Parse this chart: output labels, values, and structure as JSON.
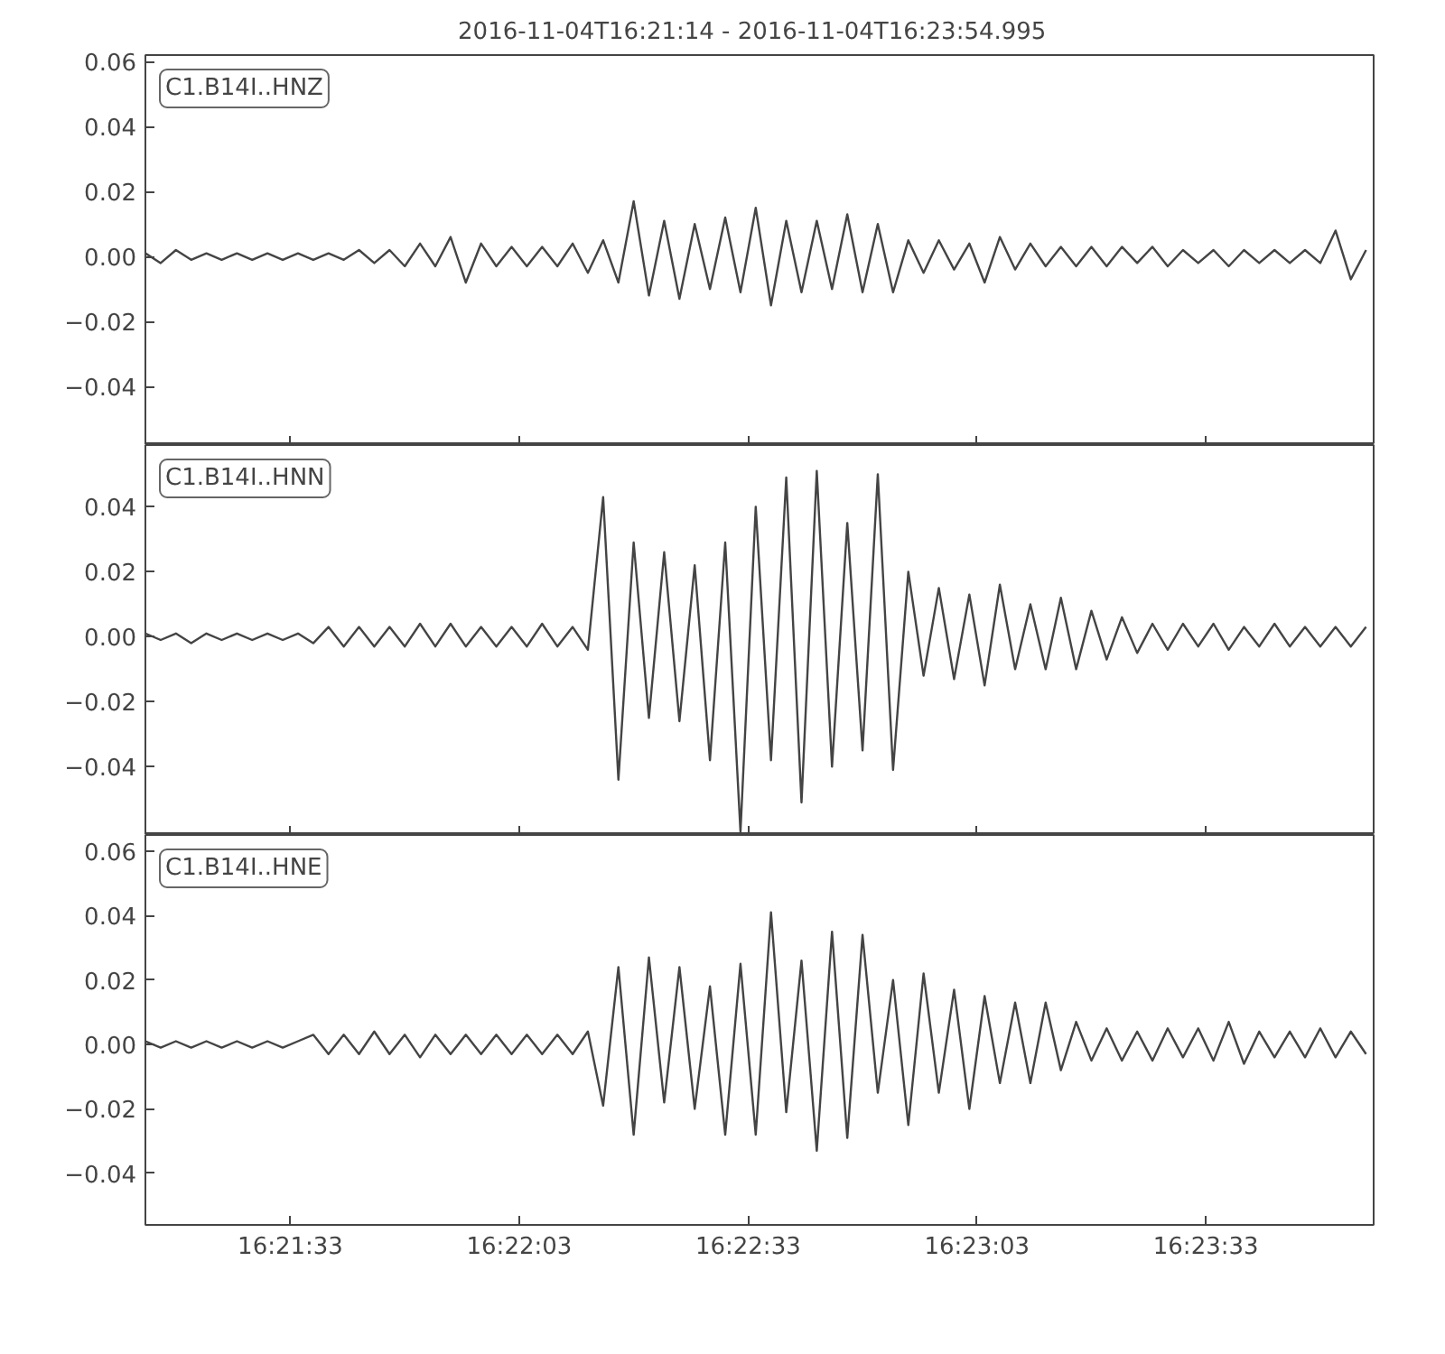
{
  "chart_data": [
    {
      "type": "line",
      "title": "2016-11-04T16:21:14  -  2016-11-04T16:23:54.995",
      "annotations": [
        "C1.B14I..HNZ"
      ],
      "tick_labels": "y",
      "grid": false,
      "x": [
        "2016-11-04T16:21:14",
        "2016-11-04T16:21:16",
        "2016-11-04T16:21:18",
        "2016-11-04T16:21:20",
        "2016-11-04T16:21:22",
        "2016-11-04T16:21:24",
        "2016-11-04T16:21:26",
        "2016-11-04T16:21:28",
        "2016-11-04T16:21:30",
        "2016-11-04T16:21:32",
        "2016-11-04T16:21:34",
        "2016-11-04T16:21:36",
        "2016-11-04T16:21:38",
        "2016-11-04T16:21:40",
        "2016-11-04T16:21:42",
        "2016-11-04T16:21:44",
        "2016-11-04T16:21:46",
        "2016-11-04T16:21:48",
        "2016-11-04T16:21:50",
        "2016-11-04T16:21:52",
        "2016-11-04T16:21:54",
        "2016-11-04T16:21:56",
        "2016-11-04T16:21:58",
        "2016-11-04T16:22:00",
        "2016-11-04T16:22:02",
        "2016-11-04T16:22:04",
        "2016-11-04T16:22:06",
        "2016-11-04T16:22:08",
        "2016-11-04T16:22:10",
        "2016-11-04T16:22:12",
        "2016-11-04T16:22:14",
        "2016-11-04T16:22:16",
        "2016-11-04T16:22:18",
        "2016-11-04T16:22:20",
        "2016-11-04T16:22:22",
        "2016-11-04T16:22:24",
        "2016-11-04T16:22:26",
        "2016-11-04T16:22:28",
        "2016-11-04T16:22:30",
        "2016-11-04T16:22:32",
        "2016-11-04T16:22:34",
        "2016-11-04T16:22:36",
        "2016-11-04T16:22:38",
        "2016-11-04T16:22:40",
        "2016-11-04T16:22:42",
        "2016-11-04T16:22:44",
        "2016-11-04T16:22:46",
        "2016-11-04T16:22:48",
        "2016-11-04T16:22:50",
        "2016-11-04T16:22:52",
        "2016-11-04T16:22:54",
        "2016-11-04T16:22:56",
        "2016-11-04T16:22:58",
        "2016-11-04T16:23:00",
        "2016-11-04T16:23:02",
        "2016-11-04T16:23:04",
        "2016-11-04T16:23:06",
        "2016-11-04T16:23:08",
        "2016-11-04T16:23:10",
        "2016-11-04T16:23:12",
        "2016-11-04T16:23:14",
        "2016-11-04T16:23:16",
        "2016-11-04T16:23:18",
        "2016-11-04T16:23:20",
        "2016-11-04T16:23:22",
        "2016-11-04T16:23:24",
        "2016-11-04T16:23:26",
        "2016-11-04T16:23:28",
        "2016-11-04T16:23:30",
        "2016-11-04T16:23:32",
        "2016-11-04T16:23:34",
        "2016-11-04T16:23:36",
        "2016-11-04T16:23:38",
        "2016-11-04T16:23:40",
        "2016-11-04T16:23:42",
        "2016-11-04T16:23:44",
        "2016-11-04T16:23:46",
        "2016-11-04T16:23:48",
        "2016-11-04T16:23:50",
        "2016-11-04T16:23:52",
        "2016-11-04T16:23:54"
      ],
      "series": [
        {
          "color": "#444444",
          "values": [
            0.001,
            -0.002,
            0.002,
            -0.001,
            0.001,
            -0.001,
            0.001,
            -0.001,
            0.001,
            -0.001,
            0.001,
            -0.001,
            0.001,
            -0.001,
            0.002,
            -0.002,
            0.002,
            -0.003,
            0.004,
            -0.003,
            0.006,
            -0.008,
            0.004,
            -0.003,
            0.003,
            -0.003,
            0.003,
            -0.003,
            0.004,
            -0.005,
            0.005,
            -0.008,
            0.017,
            -0.012,
            0.011,
            -0.013,
            0.01,
            -0.01,
            0.012,
            -0.011,
            0.015,
            -0.015,
            0.011,
            -0.011,
            0.011,
            -0.01,
            0.013,
            -0.011,
            0.01,
            -0.011,
            0.005,
            -0.005,
            0.005,
            -0.004,
            0.004,
            -0.008,
            0.006,
            -0.004,
            0.004,
            -0.003,
            0.003,
            -0.003,
            0.003,
            -0.003,
            0.003,
            -0.002,
            0.003,
            -0.003,
            0.002,
            -0.002,
            0.002,
            -0.003,
            0.002,
            -0.002,
            0.002,
            -0.002,
            0.002,
            -0.002,
            0.008,
            -0.007,
            0.002
          ]
        }
      ],
      "xlim": [
        "2016-11-04T16:21:14",
        "2016-11-04T16:23:54.995"
      ],
      "xticks": [
        {
          "value": "2016-11-04T16:21:33",
          "label": null
        },
        {
          "value": "2016-11-04T16:22:03",
          "label": null
        },
        {
          "value": "2016-11-04T16:22:33",
          "label": null
        },
        {
          "value": "2016-11-04T16:23:03",
          "label": null
        },
        {
          "value": "2016-11-04T16:23:33",
          "label": null
        }
      ],
      "ylim": [
        -0.058,
        0.062
      ],
      "yticks": [
        {
          "value": -0.04,
          "label": "−0.04"
        },
        {
          "value": -0.02,
          "label": "−0.02"
        },
        {
          "value": 0,
          "label": "0.00"
        },
        {
          "value": 0.02,
          "label": "0.02"
        },
        {
          "value": 0.04,
          "label": "0.04"
        },
        {
          "value": 0.06,
          "label": "0.06"
        }
      ]
    },
    {
      "type": "line",
      "annotations": [
        "C1.B14I..HNN"
      ],
      "tick_labels": "y",
      "grid": false,
      "x": [
        "2016-11-04T16:21:14",
        "2016-11-04T16:21:16",
        "2016-11-04T16:21:18",
        "2016-11-04T16:21:20",
        "2016-11-04T16:21:22",
        "2016-11-04T16:21:24",
        "2016-11-04T16:21:26",
        "2016-11-04T16:21:28",
        "2016-11-04T16:21:30",
        "2016-11-04T16:21:32",
        "2016-11-04T16:21:34",
        "2016-11-04T16:21:36",
        "2016-11-04T16:21:38",
        "2016-11-04T16:21:40",
        "2016-11-04T16:21:42",
        "2016-11-04T16:21:44",
        "2016-11-04T16:21:46",
        "2016-11-04T16:21:48",
        "2016-11-04T16:21:50",
        "2016-11-04T16:21:52",
        "2016-11-04T16:21:54",
        "2016-11-04T16:21:56",
        "2016-11-04T16:21:58",
        "2016-11-04T16:22:00",
        "2016-11-04T16:22:02",
        "2016-11-04T16:22:04",
        "2016-11-04T16:22:06",
        "2016-11-04T16:22:08",
        "2016-11-04T16:22:10",
        "2016-11-04T16:22:12",
        "2016-11-04T16:22:14",
        "2016-11-04T16:22:16",
        "2016-11-04T16:22:18",
        "2016-11-04T16:22:20",
        "2016-11-04T16:22:22",
        "2016-11-04T16:22:24",
        "2016-11-04T16:22:26",
        "2016-11-04T16:22:28",
        "2016-11-04T16:22:30",
        "2016-11-04T16:22:32",
        "2016-11-04T16:22:34",
        "2016-11-04T16:22:36",
        "2016-11-04T16:22:38",
        "2016-11-04T16:22:40",
        "2016-11-04T16:22:42",
        "2016-11-04T16:22:44",
        "2016-11-04T16:22:46",
        "2016-11-04T16:22:48",
        "2016-11-04T16:22:50",
        "2016-11-04T16:22:52",
        "2016-11-04T16:22:54",
        "2016-11-04T16:22:56",
        "2016-11-04T16:22:58",
        "2016-11-04T16:23:00",
        "2016-11-04T16:23:02",
        "2016-11-04T16:23:04",
        "2016-11-04T16:23:06",
        "2016-11-04T16:23:08",
        "2016-11-04T16:23:10",
        "2016-11-04T16:23:12",
        "2016-11-04T16:23:14",
        "2016-11-04T16:23:16",
        "2016-11-04T16:23:18",
        "2016-11-04T16:23:20",
        "2016-11-04T16:23:22",
        "2016-11-04T16:23:24",
        "2016-11-04T16:23:26",
        "2016-11-04T16:23:28",
        "2016-11-04T16:23:30",
        "2016-11-04T16:23:32",
        "2016-11-04T16:23:34",
        "2016-11-04T16:23:36",
        "2016-11-04T16:23:38",
        "2016-11-04T16:23:40",
        "2016-11-04T16:23:42",
        "2016-11-04T16:23:44",
        "2016-11-04T16:23:46",
        "2016-11-04T16:23:48",
        "2016-11-04T16:23:50",
        "2016-11-04T16:23:52",
        "2016-11-04T16:23:54"
      ],
      "series": [
        {
          "color": "#444444",
          "values": [
            0.001,
            -0.001,
            0.001,
            -0.002,
            0.001,
            -0.001,
            0.001,
            -0.001,
            0.001,
            -0.001,
            0.001,
            -0.002,
            0.003,
            -0.003,
            0.003,
            -0.003,
            0.003,
            -0.003,
            0.004,
            -0.003,
            0.004,
            -0.003,
            0.003,
            -0.003,
            0.003,
            -0.003,
            0.004,
            -0.003,
            0.003,
            -0.004,
            0.043,
            -0.044,
            0.029,
            -0.025,
            0.026,
            -0.026,
            0.022,
            -0.038,
            0.029,
            -0.06,
            0.04,
            -0.038,
            0.049,
            -0.051,
            0.051,
            -0.04,
            0.035,
            -0.035,
            0.05,
            -0.041,
            0.02,
            -0.012,
            0.015,
            -0.013,
            0.013,
            -0.015,
            0.016,
            -0.01,
            0.01,
            -0.01,
            0.012,
            -0.01,
            0.008,
            -0.007,
            0.006,
            -0.005,
            0.004,
            -0.004,
            0.004,
            -0.003,
            0.004,
            -0.004,
            0.003,
            -0.003,
            0.004,
            -0.003,
            0.003,
            -0.003,
            0.003,
            -0.003,
            0.003
          ]
        }
      ],
      "xlim": [
        "2016-11-04T16:21:14",
        "2016-11-04T16:23:54.995"
      ],
      "xticks": [
        {
          "value": "2016-11-04T16:21:33",
          "label": null
        },
        {
          "value": "2016-11-04T16:22:03",
          "label": null
        },
        {
          "value": "2016-11-04T16:22:33",
          "label": null
        },
        {
          "value": "2016-11-04T16:23:03",
          "label": null
        },
        {
          "value": "2016-11-04T16:23:33",
          "label": null
        }
      ],
      "ylim": [
        -0.061,
        0.059
      ],
      "yticks": [
        {
          "value": -0.04,
          "label": "−0.04"
        },
        {
          "value": -0.02,
          "label": "−0.02"
        },
        {
          "value": 0,
          "label": "0.00"
        },
        {
          "value": 0.02,
          "label": "0.02"
        },
        {
          "value": 0.04,
          "label": "0.04"
        }
      ]
    },
    {
      "type": "line",
      "annotations": [
        "C1.B14I..HNE"
      ],
      "grid": false,
      "x": [
        "2016-11-04T16:21:14",
        "2016-11-04T16:21:16",
        "2016-11-04T16:21:18",
        "2016-11-04T16:21:20",
        "2016-11-04T16:21:22",
        "2016-11-04T16:21:24",
        "2016-11-04T16:21:26",
        "2016-11-04T16:21:28",
        "2016-11-04T16:21:30",
        "2016-11-04T16:21:32",
        "2016-11-04T16:21:34",
        "2016-11-04T16:21:36",
        "2016-11-04T16:21:38",
        "2016-11-04T16:21:40",
        "2016-11-04T16:21:42",
        "2016-11-04T16:21:44",
        "2016-11-04T16:21:46",
        "2016-11-04T16:21:48",
        "2016-11-04T16:21:50",
        "2016-11-04T16:21:52",
        "2016-11-04T16:21:54",
        "2016-11-04T16:21:56",
        "2016-11-04T16:21:58",
        "2016-11-04T16:22:00",
        "2016-11-04T16:22:02",
        "2016-11-04T16:22:04",
        "2016-11-04T16:22:06",
        "2016-11-04T16:22:08",
        "2016-11-04T16:22:10",
        "2016-11-04T16:22:12",
        "2016-11-04T16:22:14",
        "2016-11-04T16:22:16",
        "2016-11-04T16:22:18",
        "2016-11-04T16:22:20",
        "2016-11-04T16:22:22",
        "2016-11-04T16:22:24",
        "2016-11-04T16:22:26",
        "2016-11-04T16:22:28",
        "2016-11-04T16:22:30",
        "2016-11-04T16:22:32",
        "2016-11-04T16:22:34",
        "2016-11-04T16:22:36",
        "2016-11-04T16:22:38",
        "2016-11-04T16:22:40",
        "2016-11-04T16:22:42",
        "2016-11-04T16:22:44",
        "2016-11-04T16:22:46",
        "2016-11-04T16:22:48",
        "2016-11-04T16:22:50",
        "2016-11-04T16:22:52",
        "2016-11-04T16:22:54",
        "2016-11-04T16:22:56",
        "2016-11-04T16:22:58",
        "2016-11-04T16:23:00",
        "2016-11-04T16:23:02",
        "2016-11-04T16:23:04",
        "2016-11-04T16:23:06",
        "2016-11-04T16:23:08",
        "2016-11-04T16:23:10",
        "2016-11-04T16:23:12",
        "2016-11-04T16:23:14",
        "2016-11-04T16:23:16",
        "2016-11-04T16:23:18",
        "2016-11-04T16:23:20",
        "2016-11-04T16:23:22",
        "2016-11-04T16:23:24",
        "2016-11-04T16:23:26",
        "2016-11-04T16:23:28",
        "2016-11-04T16:23:30",
        "2016-11-04T16:23:32",
        "2016-11-04T16:23:34",
        "2016-11-04T16:23:36",
        "2016-11-04T16:23:38",
        "2016-11-04T16:23:40",
        "2016-11-04T16:23:42",
        "2016-11-04T16:23:44",
        "2016-11-04T16:23:46",
        "2016-11-04T16:23:48",
        "2016-11-04T16:23:50",
        "2016-11-04T16:23:52",
        "2016-11-04T16:23:54"
      ],
      "series": [
        {
          "color": "#444444",
          "values": [
            0.001,
            -0.001,
            0.001,
            -0.001,
            0.001,
            -0.001,
            0.001,
            -0.001,
            0.001,
            -0.001,
            0.001,
            0.003,
            -0.003,
            0.003,
            -0.003,
            0.004,
            -0.003,
            0.003,
            -0.004,
            0.003,
            -0.003,
            0.003,
            -0.003,
            0.003,
            -0.003,
            0.003,
            -0.003,
            0.003,
            -0.003,
            0.004,
            -0.019,
            0.024,
            -0.028,
            0.027,
            -0.018,
            0.024,
            -0.02,
            0.018,
            -0.028,
            0.025,
            -0.028,
            0.041,
            -0.021,
            0.026,
            -0.033,
            0.035,
            -0.029,
            0.034,
            -0.015,
            0.02,
            -0.025,
            0.022,
            -0.015,
            0.017,
            -0.02,
            0.015,
            -0.012,
            0.013,
            -0.012,
            0.013,
            -0.008,
            0.007,
            -0.005,
            0.005,
            -0.005,
            0.004,
            -0.005,
            0.005,
            -0.004,
            0.005,
            -0.005,
            0.007,
            -0.006,
            0.004,
            -0.004,
            0.004,
            -0.004,
            0.005,
            -0.004,
            0.004,
            -0.003
          ]
        }
      ],
      "xlim": [
        "2016-11-04T16:21:14",
        "2016-11-04T16:23:54.995"
      ],
      "xticks": [
        {
          "value": "2016-11-04T16:21:33",
          "label": "16:21:33"
        },
        {
          "value": "2016-11-04T16:22:03",
          "label": "16:22:03"
        },
        {
          "value": "2016-11-04T16:22:33",
          "label": "16:22:33"
        },
        {
          "value": "2016-11-04T16:23:03",
          "label": "16:23:03"
        },
        {
          "value": "2016-11-04T16:23:33",
          "label": "16:23:33"
        }
      ],
      "ylim": [
        -0.056,
        0.065
      ],
      "yticks": [
        {
          "value": -0.04,
          "label": "−0.04"
        },
        {
          "value": -0.02,
          "label": "−0.02"
        },
        {
          "value": 0,
          "label": "0.00"
        },
        {
          "value": 0.02,
          "label": "0.02"
        },
        {
          "value": 0.04,
          "label": "0.04"
        },
        {
          "value": 0.06,
          "label": "0.06"
        }
      ]
    }
  ]
}
